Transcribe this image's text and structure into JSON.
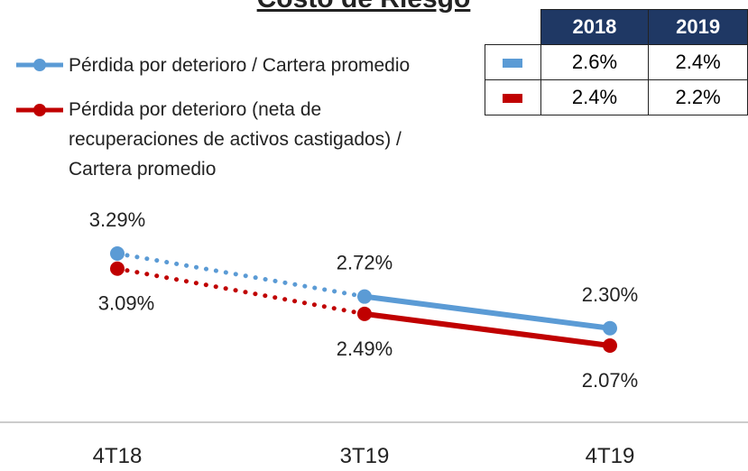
{
  "chart_data": {
    "type": "line",
    "title": "Costo de Riesgo",
    "categories": [
      "4T18",
      "3T19",
      "4T19"
    ],
    "segment_styles": [
      "dotted",
      "solid"
    ],
    "series": [
      {
        "name": "Pérdida por deterioro / Cartera promedio",
        "color": "#5b9bd5",
        "values": [
          3.29,
          2.72,
          2.3
        ],
        "value_labels": [
          "3.29%",
          "2.72%",
          "2.30%"
        ]
      },
      {
        "name": "Pérdida por deterioro (neta de recuperaciones de activos castigados) / Cartera promedio",
        "color": "#c00000",
        "values": [
          3.09,
          2.49,
          2.07
        ],
        "value_labels": [
          "3.09%",
          "2.49%",
          "2.07%"
        ]
      }
    ]
  },
  "table": {
    "headers": [
      "2018",
      "2019"
    ],
    "header_color": "#1f3864",
    "rows": [
      {
        "color": "#5b9bd5",
        "cells": [
          "2.6%",
          "2.4%"
        ]
      },
      {
        "color": "#c00000",
        "cells": [
          "2.4%",
          "2.2%"
        ]
      }
    ]
  }
}
